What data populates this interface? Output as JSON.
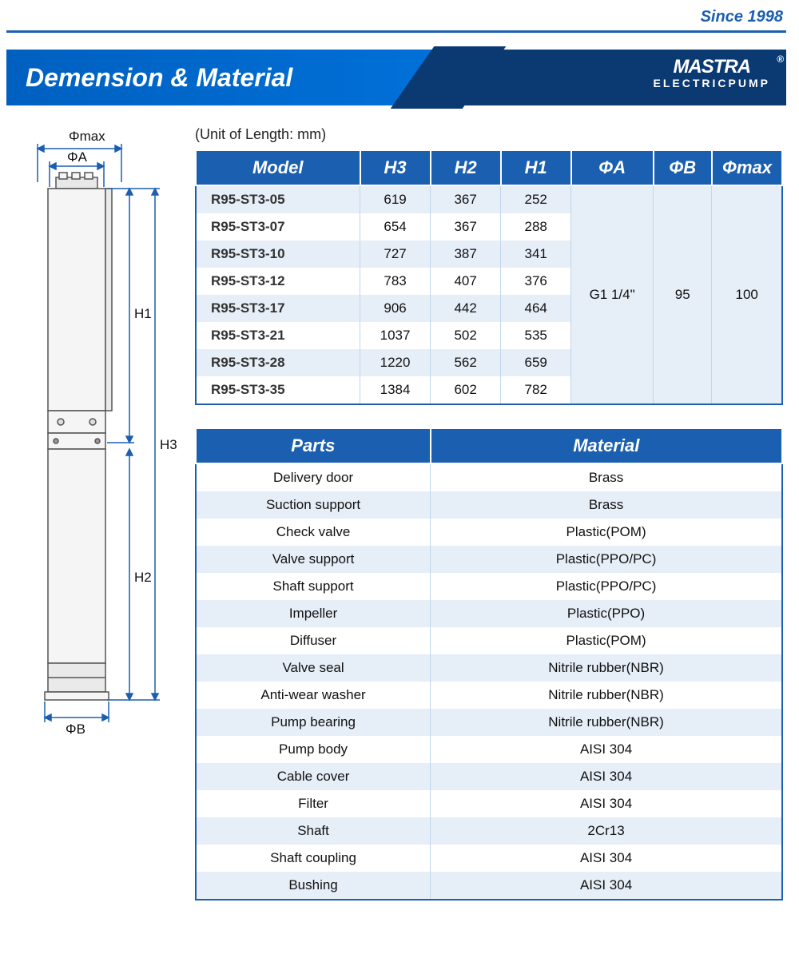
{
  "header": {
    "since": "Since 1998",
    "title": "Demension & Material",
    "brand_name": "MASTRA",
    "brand_sub": "ELECTRICPUMP",
    "reg": "®"
  },
  "colors": {
    "primary_blue": "#1b5fb0",
    "header_blue_light": "#0070d8",
    "header_blue_dark": "#0b3a73",
    "row_odd_bg": "#e6eef8",
    "row_even_bg": "#ffffff",
    "border_light": "#c2d6ec",
    "text": "#111111",
    "white": "#ffffff"
  },
  "diagram": {
    "labels": {
      "phi_max": "Φmax",
      "phi_a": "ΦA",
      "phi_b": "ΦB",
      "h1": "H1",
      "h2": "H2",
      "h3": "H3"
    },
    "line_color": "#1b5fb0",
    "body_fill": "#f0f0f0"
  },
  "unit_note": "(Unit of Length: mm)",
  "model_table": {
    "columns": [
      "Model",
      "H3",
      "H2",
      "H1",
      "ΦA",
      "ΦB",
      "Φmax"
    ],
    "rows": [
      {
        "model": "R95-ST3-05",
        "h3": "619",
        "h2": "367",
        "h1": "252"
      },
      {
        "model": "R95-ST3-07",
        "h3": "654",
        "h2": "367",
        "h1": "288"
      },
      {
        "model": "R95-ST3-10",
        "h3": "727",
        "h2": "387",
        "h1": "341"
      },
      {
        "model": "R95-ST3-12",
        "h3": "783",
        "h2": "407",
        "h1": "376"
      },
      {
        "model": "R95-ST3-17",
        "h3": "906",
        "h2": "442",
        "h1": "464"
      },
      {
        "model": "R95-ST3-21",
        "h3": "1037",
        "h2": "502",
        "h1": "535"
      },
      {
        "model": "R95-ST3-28",
        "h3": "1220",
        "h2": "562",
        "h1": "659"
      },
      {
        "model": "R95-ST3-35",
        "h3": "1384",
        "h2": "602",
        "h1": "782"
      }
    ],
    "merged": {
      "phi_a": "G1 1/4\"",
      "phi_b": "95",
      "phi_max": "100"
    },
    "header_fontsize": 22,
    "body_fontsize": 17,
    "col_widths_pct": [
      28,
      12,
      12,
      12,
      14,
      10,
      12
    ]
  },
  "parts_table": {
    "columns": [
      "Parts",
      "Material"
    ],
    "rows": [
      [
        "Delivery door",
        "Brass"
      ],
      [
        "Suction support",
        "Brass"
      ],
      [
        "Check valve",
        "Plastic(POM)"
      ],
      [
        "Valve support",
        "Plastic(PPO/PC)"
      ],
      [
        "Shaft support",
        "Plastic(PPO/PC)"
      ],
      [
        "Impeller",
        "Plastic(PPO)"
      ],
      [
        "Diffuser",
        "Plastic(POM)"
      ],
      [
        "Valve seal",
        "Nitrile rubber(NBR)"
      ],
      [
        "Anti-wear washer",
        "Nitrile rubber(NBR)"
      ],
      [
        "Pump bearing",
        "Nitrile rubber(NBR)"
      ],
      [
        "Pump body",
        "AISI 304"
      ],
      [
        "Cable cover",
        "AISI 304"
      ],
      [
        "Filter",
        "AISI 304"
      ],
      [
        "Shaft",
        "2Cr13"
      ],
      [
        "Shaft coupling",
        "AISI 304"
      ],
      [
        "Bushing",
        "AISI 304"
      ]
    ],
    "header_fontsize": 22,
    "body_fontsize": 17,
    "col_widths_pct": [
      40,
      60
    ]
  }
}
